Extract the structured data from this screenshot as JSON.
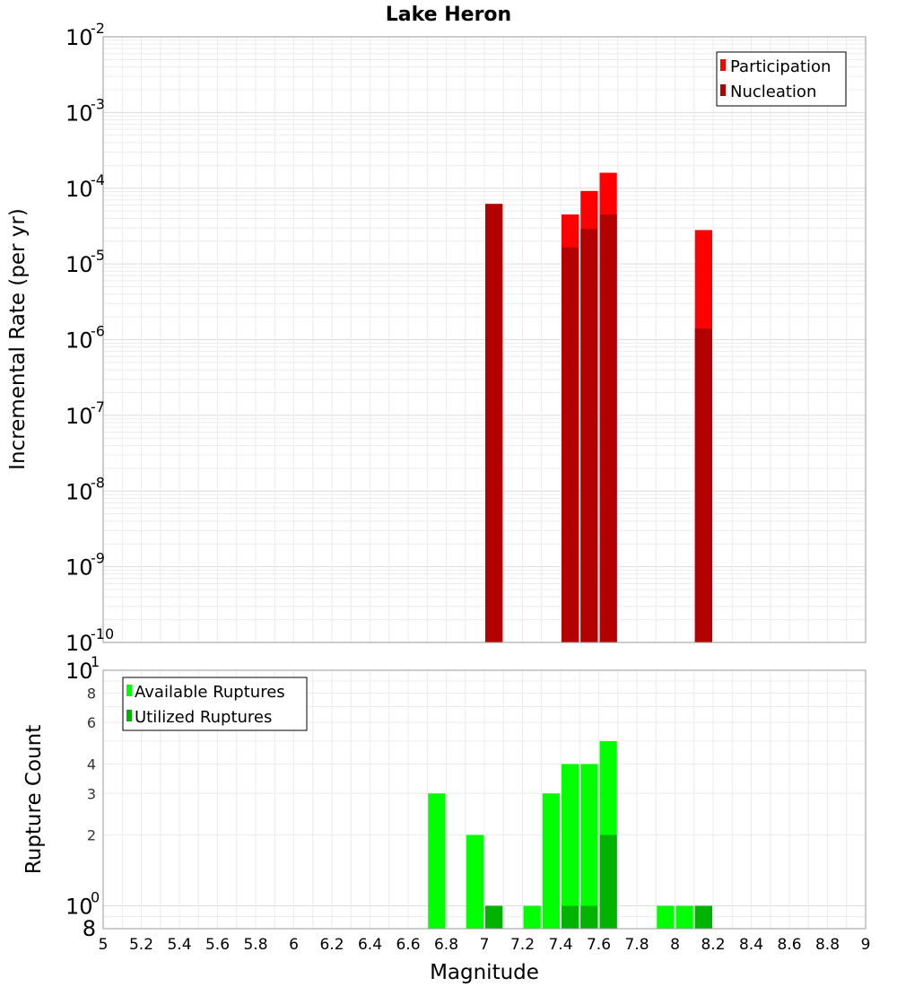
{
  "chart_data": [
    {
      "type": "bar",
      "title": "Lake Heron",
      "xlabel": "",
      "ylabel": "Incremental Rate (per yr)",
      "xlim": [
        5,
        9
      ],
      "ylim": [
        1e-10,
        0.01
      ],
      "y_scale": "log",
      "bar_width": 0.1,
      "grid": true,
      "legend": "top-right",
      "series": [
        {
          "name": "Participation",
          "color": "#ff0000",
          "x": [
            7.05,
            7.45,
            7.55,
            7.65,
            8.15
          ],
          "values": [
            6.2e-05,
            4.5e-05,
            9.2e-05,
            0.00016,
            2.8e-05
          ]
        },
        {
          "name": "Nucleation",
          "color": "#b30000",
          "x": [
            7.05,
            7.45,
            7.55,
            7.65,
            8.15
          ],
          "values": [
            6.2e-05,
            1.65e-05,
            2.9e-05,
            4.5e-05,
            1.4e-06
          ]
        }
      ],
      "y_tick_exponents": [
        "-10",
        "-9",
        "-8",
        "-7",
        "-6",
        "-5",
        "-4",
        "-3",
        "-2"
      ]
    },
    {
      "type": "bar",
      "title": "",
      "xlabel": "Magnitude",
      "ylabel": "Rupture Count",
      "xlim": [
        5,
        9
      ],
      "ylim": [
        0.8,
        10
      ],
      "y_scale": "log",
      "bar_width": 0.1,
      "grid": true,
      "legend": "top-left",
      "series": [
        {
          "name": "Available Ruptures",
          "color": "#00ff00",
          "x": [
            6.75,
            6.95,
            7.05,
            7.25,
            7.35,
            7.45,
            7.55,
            7.65,
            7.95,
            8.05,
            8.15
          ],
          "values": [
            3,
            2,
            1,
            1,
            3,
            4,
            4,
            5,
            1,
            1,
            1
          ]
        },
        {
          "name": "Utilized Ruptures",
          "color": "#00b300",
          "x": [
            7.05,
            7.45,
            7.55,
            7.65,
            8.15
          ],
          "values": [
            1,
            1,
            1,
            2,
            1
          ]
        }
      ],
      "y_major_ticks": [
        {
          "base": "10",
          "exp": "0"
        },
        {
          "base": "10",
          "exp": "1"
        }
      ],
      "y_minor_labels": [
        "2",
        "3",
        "4",
        "6",
        "8"
      ],
      "y_bottom_label": "8",
      "x_tick_labels": [
        "5",
        "5.2",
        "5.4",
        "5.6",
        "5.8",
        "6",
        "6.2",
        "6.4",
        "6.6",
        "6.8",
        "7",
        "7.2",
        "7.4",
        "7.6",
        "7.8",
        "8",
        "8.2",
        "8.4",
        "8.6",
        "8.8",
        "9"
      ]
    }
  ]
}
